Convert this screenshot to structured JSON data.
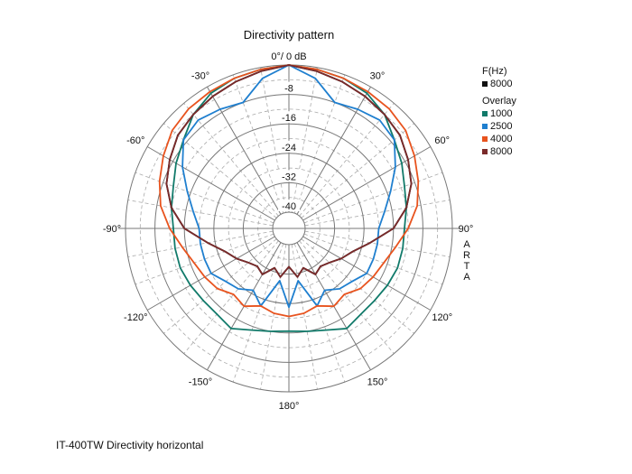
{
  "chart_data": {
    "type": "polar-line",
    "title": "Directivity pattern",
    "top_label": "0°/ 0 dB",
    "angle_labels": [
      {
        "angle": 30,
        "text": "30°"
      },
      {
        "angle": 60,
        "text": "60°"
      },
      {
        "angle": 90,
        "text": "90°"
      },
      {
        "angle": 120,
        "text": "120°"
      },
      {
        "angle": 150,
        "text": "150°"
      },
      {
        "angle": 180,
        "text": "180°"
      },
      {
        "angle": -150,
        "text": "-150°"
      },
      {
        "angle": -120,
        "text": "-120°"
      },
      {
        "angle": -90,
        "text": "-90°"
      },
      {
        "angle": -60,
        "text": "-60°"
      },
      {
        "angle": -30,
        "text": "-30°"
      }
    ],
    "radial_ticks": [
      {
        "value": -8,
        "text": "-8"
      },
      {
        "value": -16,
        "text": "-16"
      },
      {
        "value": -24,
        "text": "-24"
      },
      {
        "value": -32,
        "text": "-32"
      },
      {
        "value": -40,
        "text": "-40"
      }
    ],
    "rlim": [
      -40,
      0
    ],
    "grid": true,
    "angles_deg": [
      0,
      10,
      20,
      30,
      40,
      50,
      60,
      70,
      80,
      90,
      100,
      110,
      120,
      130,
      140,
      150,
      160,
      170,
      180,
      190,
      200,
      210,
      220,
      230,
      240,
      250,
      260,
      270,
      280,
      290,
      300,
      310,
      320,
      330,
      340,
      350
    ],
    "series": [
      {
        "name": "8000",
        "group": "F(Hz)",
        "color": "#111111",
        "values": [
          0,
          -1,
          -2,
          -3,
          -4,
          -5,
          -7,
          -9,
          -12,
          -16,
          -22,
          -26,
          -28,
          -30,
          -31,
          -30,
          -33,
          -31,
          -34,
          -31,
          -33,
          -30,
          -31,
          -30,
          -28,
          -26,
          -22,
          -16,
          -12,
          -9,
          -7,
          -5,
          -4,
          -3,
          -2,
          -1
        ]
      },
      {
        "name": "1000",
        "group": "Overlay",
        "color": "#117a6a",
        "values": [
          0,
          -0.5,
          -1,
          -2,
          -4,
          -7,
          -9,
          -11,
          -12,
          -13,
          -13,
          -13,
          -13.5,
          -14,
          -14,
          -13,
          -15,
          -16,
          -16.5,
          -16,
          -15,
          -13,
          -14,
          -14,
          -13.5,
          -13,
          -13,
          -13,
          -12,
          -11,
          -9,
          -7,
          -4,
          -2,
          -1,
          -0.5
        ]
      },
      {
        "name": "2500",
        "group": "Overlay",
        "color": "#1f7fcf",
        "values": [
          0,
          -3,
          -8,
          -7,
          -6,
          -7,
          -11,
          -15,
          -18,
          -20,
          -20,
          -20,
          -20,
          -22,
          -23,
          -25,
          -22,
          -30,
          -23,
          -30,
          -22,
          -25,
          -23,
          -22,
          -20,
          -20,
          -20,
          -20,
          -18,
          -15,
          -11,
          -7,
          -6,
          -7,
          -8,
          -3
        ]
      },
      {
        "name": "4000",
        "group": "Overlay",
        "color": "#e8531e",
        "values": [
          0,
          -0.5,
          -1,
          -1.5,
          -2,
          -3,
          -5,
          -7,
          -9,
          -12,
          -15,
          -17,
          -18,
          -19,
          -21,
          -20,
          -22,
          -21,
          -20.5,
          -21,
          -22,
          -20,
          -21,
          -19,
          -18,
          -17,
          -15,
          -12,
          -9,
          -7,
          -5,
          -3,
          -2,
          -1.5,
          -1,
          -0.5
        ]
      },
      {
        "name": "8000",
        "group": "Overlay",
        "color": "#7a2a2a",
        "values": [
          0,
          -1,
          -2,
          -3,
          -4,
          -5,
          -7,
          -9,
          -12,
          -16,
          -22,
          -26,
          -28,
          -30,
          -31,
          -30,
          -33,
          -31,
          -34,
          -31,
          -33,
          -30,
          -31,
          -30,
          -28,
          -26,
          -22,
          -16,
          -12,
          -9,
          -7,
          -5,
          -4,
          -3,
          -2,
          -1
        ]
      }
    ],
    "legend": {
      "placement": "right",
      "header1": "F(Hz)",
      "item1": "8000",
      "header2": "Overlay",
      "items": [
        "1000",
        "2500",
        "4000",
        "8000"
      ]
    }
  },
  "caption": "IT-400TW Directivity horizontal",
  "watermark": "ARTA"
}
